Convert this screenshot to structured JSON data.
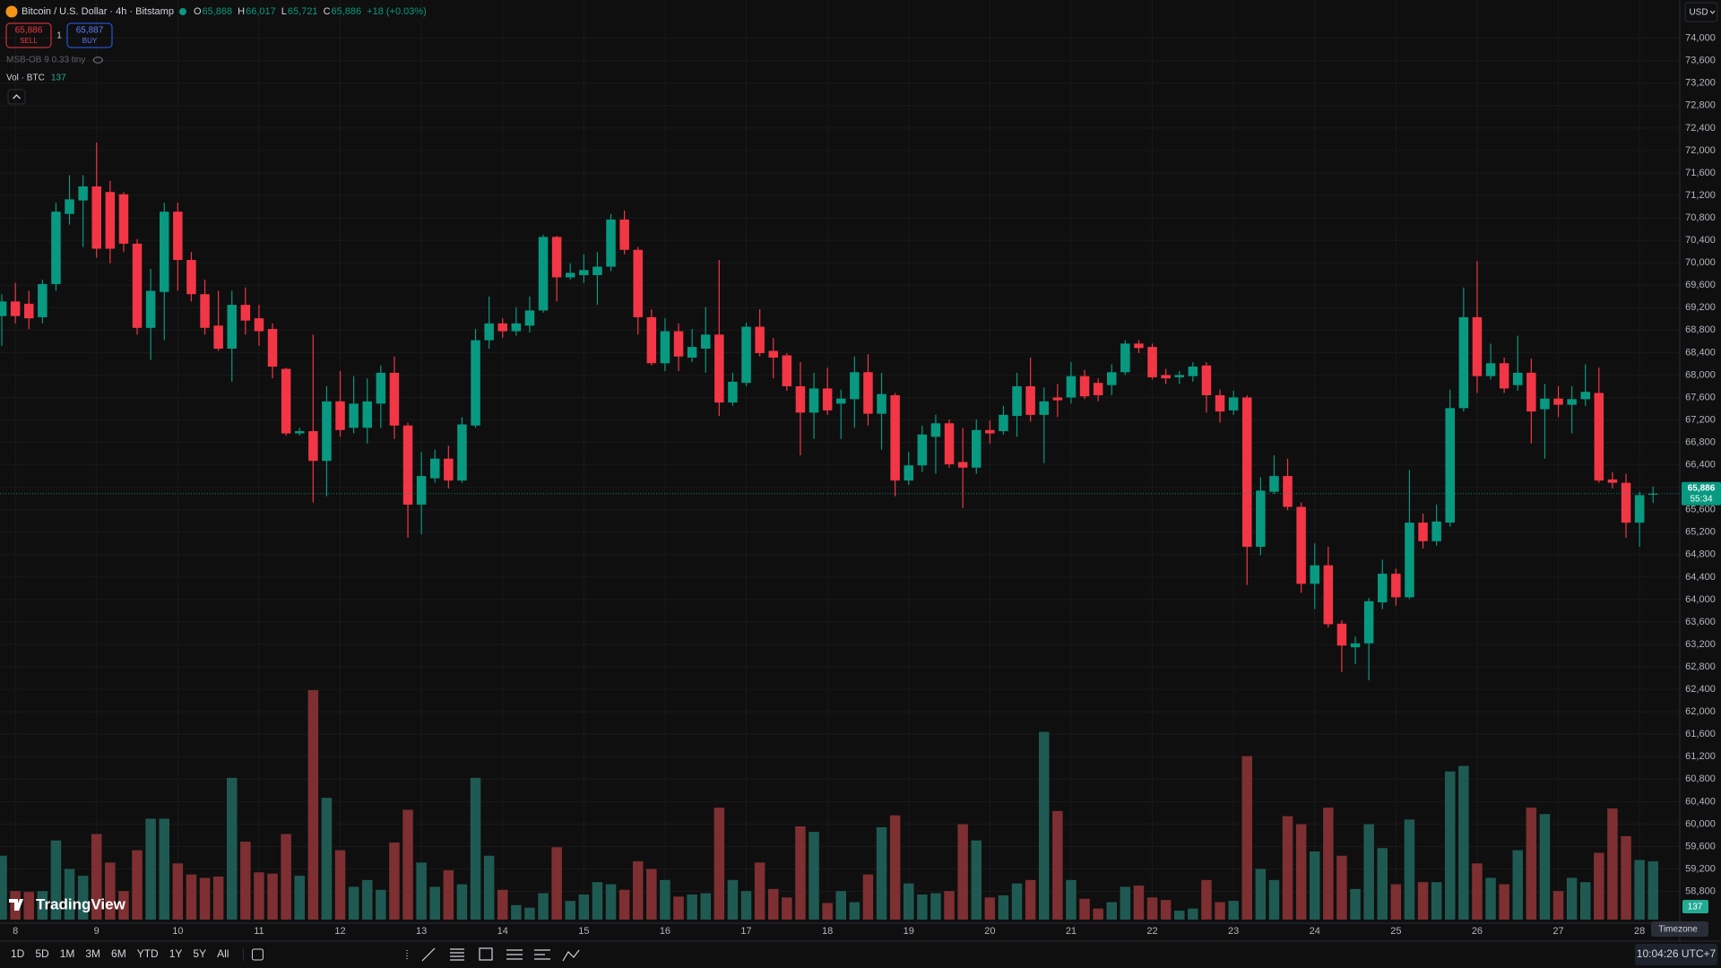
{
  "header": {
    "symbol": "Bitcoin / U.S. Dollar · 4h · Bitstamp",
    "o_label": "O",
    "open": "65,868",
    "h_label": "H",
    "high": "66,017",
    "l_label": "L",
    "low": "65,721",
    "c_label": "C",
    "close": "65,886",
    "change": "+18 (+0.03%)"
  },
  "trade": {
    "sell_price": "65,886",
    "sell": "SELL",
    "quantity": "1",
    "buy_price": "65,887",
    "buy": "BUY"
  },
  "indicator": "MSB-OB 9 0.33 tiny",
  "volume_legend": "Vol · BTC",
  "currency": "USD",
  "price_tag": {
    "price": "65,886",
    "countdown": "55:34"
  },
  "timeframes": [
    "1D",
    "5D",
    "1M",
    "3M",
    "6M",
    "YTD",
    "1Y",
    "5Y",
    "All"
  ],
  "clock": "10:04:26 UTC+7",
  "tooltip": "Timezone",
  "logo": "TradingView",
  "chart_data": {
    "type": "candlestick",
    "categories": [
      null,
      "8",
      null,
      null,
      null,
      null,
      null,
      "9",
      null,
      null,
      null,
      null,
      null,
      "10",
      null,
      null,
      null,
      null,
      null,
      "11",
      null,
      null,
      null,
      null,
      null,
      "12",
      null,
      null,
      null,
      null,
      null,
      "13",
      null,
      null,
      null,
      null,
      null,
      "14",
      null,
      null,
      null,
      null,
      null,
      "15",
      null,
      null,
      null,
      null,
      null,
      "16",
      null,
      null,
      null,
      null,
      null,
      "17",
      null,
      null,
      null,
      null,
      null,
      "18",
      null,
      null,
      null,
      null,
      null,
      "19",
      null,
      null,
      null,
      null,
      null,
      "20",
      null,
      null,
      null,
      null,
      null,
      "21",
      null,
      null,
      null,
      null,
      null,
      "22",
      null,
      null,
      null,
      null,
      null,
      "23",
      null,
      null,
      null,
      null,
      null,
      "24",
      null,
      null,
      null,
      null,
      null,
      "25",
      null,
      null,
      null,
      null,
      null,
      "26",
      null,
      null,
      null,
      null,
      null,
      "27",
      null,
      null,
      null,
      null,
      null,
      "28",
      null
    ],
    "open": [
      69050,
      69310,
      69270,
      69030,
      69620,
      70870,
      71110,
      71360,
      71260,
      71220,
      70340,
      68840,
      69480,
      70910,
      70050,
      69440,
      68880,
      68470,
      69250,
      69010,
      68820,
      68110,
      66960,
      67000,
      66470,
      67530,
      67060,
      67060,
      67490,
      68040,
      67100,
      65690,
      66160,
      66510,
      66120,
      67100,
      68620,
      68920,
      68780,
      68880,
      69150,
      70460,
      69740,
      69780,
      69780,
      69930,
      70770,
      70230,
      69030,
      68210,
      68780,
      68310,
      68470,
      68720,
      67510,
      67860,
      68860,
      68430,
      68350,
      67800,
      67330,
      67760,
      67490,
      67570,
      68050,
      67310,
      67640,
      66120,
      66390,
      66900,
      67140,
      66450,
      66350,
      67020,
      67000,
      67270,
      67800,
      67290,
      67600,
      67600,
      67980,
      67860,
      67820,
      68050,
      68560,
      68500,
      68000,
      67960,
      67980,
      68170,
      67640,
      67370,
      67600,
      64940,
      65920,
      66200,
      65650,
      64280,
      64610,
      63570,
      63150,
      63220,
      63950,
      64460,
      64040,
      65370,
      65040,
      65370,
      67410,
      69030,
      67980,
      68210,
      67820,
      68040,
      67390,
      67580,
      67470,
      67570,
      67680,
      66140,
      66080,
      65370,
      65868
    ],
    "high": [
      69440,
      69640,
      69500,
      69700,
      71070,
      71560,
      71560,
      72140,
      71460,
      71260,
      70420,
      69890,
      71070,
      71070,
      70190,
      69700,
      69500,
      69500,
      69560,
      69250,
      68920,
      68130,
      67060,
      68720,
      67800,
      68070,
      67980,
      67940,
      68170,
      68330,
      67150,
      66630,
      66670,
      66740,
      67250,
      68820,
      69400,
      69010,
      69210,
      69400,
      70500,
      70480,
      69990,
      70150,
      70190,
      70870,
      70930,
      70280,
      69170,
      69010,
      68920,
      68820,
      69210,
      70050,
      68040,
      68930,
      69170,
      68660,
      68390,
      68230,
      68040,
      68130,
      67740,
      68330,
      68370,
      68040,
      67680,
      66630,
      67100,
      67290,
      67210,
      67060,
      67210,
      67190,
      67450,
      68040,
      68310,
      67780,
      67840,
      68230,
      68090,
      67940,
      68190,
      68620,
      68620,
      68560,
      68110,
      68070,
      68230,
      68230,
      67740,
      67720,
      67640,
      66180,
      66570,
      66510,
      65730,
      65000,
      64940,
      63630,
      63340,
      64030,
      64710,
      64550,
      66310,
      65530,
      65690,
      67740,
      69560,
      70030,
      68560,
      68310,
      68700,
      68290,
      67840,
      67800,
      67800,
      68190,
      68130,
      66270,
      66240,
      65920,
      66017
    ],
    "low": [
      68520,
      68920,
      68820,
      68920,
      69500,
      70680,
      70280,
      70090,
      69990,
      70190,
      68720,
      68270,
      68620,
      69500,
      69310,
      68720,
      68430,
      67880,
      68720,
      68520,
      67940,
      66920,
      66920,
      65730,
      65840,
      66900,
      66960,
      66780,
      67060,
      66860,
      65100,
      65160,
      66080,
      65980,
      66080,
      67060,
      68470,
      68660,
      68700,
      68760,
      69110,
      69310,
      69700,
      69640,
      69250,
      69850,
      70150,
      68720,
      68170,
      68070,
      68070,
      68230,
      68040,
      67270,
      67450,
      67800,
      68330,
      67940,
      67720,
      66570,
      66860,
      67290,
      66860,
      67060,
      67100,
      66670,
      65840,
      66040,
      66270,
      66240,
      66350,
      65630,
      66240,
      66780,
      66940,
      66900,
      67170,
      66430,
      67250,
      67490,
      67570,
      67530,
      67640,
      68000,
      68390,
      67920,
      67840,
      67840,
      67880,
      67330,
      67150,
      67290,
      64260,
      64790,
      65880,
      65590,
      64120,
      63830,
      63500,
      62710,
      62850,
      62560,
      63830,
      63890,
      64010,
      64910,
      64960,
      65300,
      67350,
      67680,
      67920,
      67680,
      67720,
      66780,
      66510,
      67250,
      66960,
      67450,
      66080,
      65980,
      65100,
      64940,
      65721
    ],
    "close": [
      69310,
      69050,
      69010,
      69620,
      70910,
      71130,
      71360,
      70250,
      70250,
      70340,
      68840,
      69500,
      70910,
      70050,
      69440,
      68840,
      68470,
      69250,
      68970,
      68780,
      68150,
      66960,
      67000,
      66470,
      67530,
      67020,
      67490,
      67530,
      68040,
      67100,
      65690,
      66200,
      66510,
      66120,
      67120,
      68620,
      68920,
      68780,
      68920,
      69150,
      70460,
      69740,
      69820,
      69870,
      69930,
      70770,
      70230,
      69030,
      68210,
      68780,
      68330,
      68500,
      68720,
      67510,
      67880,
      68860,
      68390,
      68310,
      67800,
      67330,
      67760,
      67370,
      67580,
      68050,
      67310,
      67660,
      66120,
      66390,
      66940,
      67140,
      66410,
      66350,
      67020,
      66960,
      67290,
      67800,
      67290,
      67530,
      67550,
      67980,
      67620,
      67640,
      68050,
      68560,
      68480,
      67960,
      67940,
      68000,
      68150,
      67640,
      67350,
      67600,
      64940,
      65940,
      66200,
      65650,
      64280,
      64610,
      63560,
      63180,
      63220,
      63970,
      64460,
      64040,
      65370,
      65040,
      65390,
      67410,
      69030,
      67980,
      68210,
      67760,
      68040,
      67350,
      67580,
      67470,
      67570,
      67700,
      66120,
      66080,
      65370,
      65860,
      65886
    ],
    "volume": [
      150,
      67,
      65,
      67,
      186,
      119,
      103,
      201,
      134,
      67,
      163,
      237,
      237,
      132,
      106,
      98,
      101,
      333,
      183,
      111,
      108,
      201,
      103,
      539,
      286,
      163,
      77,
      93,
      70,
      181,
      258,
      134,
      77,
      116,
      83,
      333,
      150,
      70,
      34,
      28,
      62,
      170,
      44,
      59,
      88,
      83,
      70,
      137,
      119,
      93,
      54,
      59,
      62,
      263,
      93,
      67,
      134,
      72,
      52,
      219,
      206,
      39,
      67,
      41,
      106,
      217,
      245,
      85,
      59,
      62,
      67,
      224,
      186,
      52,
      57,
      85,
      93,
      441,
      255,
      93,
      49,
      26,
      41,
      77,
      80,
      52,
      46,
      21,
      26,
      93,
      41,
      44,
      384,
      119,
      93,
      243,
      224,
      160,
      263,
      150,
      72,
      224,
      168,
      83,
      235,
      88,
      88,
      348,
      361,
      132,
      98,
      83,
      163,
      263,
      248,
      67,
      98,
      88,
      157,
      261,
      196,
      140,
      137
    ],
    "up_color": "#089981",
    "down_color": "#f23645",
    "volume_up_color": "#1f5a52",
    "volume_down_color": "#7d2f31",
    "ylim": [
      58250,
      74250
    ],
    "yticks": [
      {
        "value": 58800,
        "label": "58,800"
      },
      {
        "value": 59200,
        "label": "59,200"
      },
      {
        "value": 59600,
        "label": "59,600"
      },
      {
        "value": 60000,
        "label": "60,000"
      },
      {
        "value": 60400,
        "label": "60,400"
      },
      {
        "value": 60800,
        "label": "60,800"
      },
      {
        "value": 61200,
        "label": "61,200"
      },
      {
        "value": 61600,
        "label": "61,600"
      },
      {
        "value": 62000,
        "label": "62,000"
      },
      {
        "value": 62400,
        "label": "62,400"
      },
      {
        "value": 62800,
        "label": "62,800"
      },
      {
        "value": 63200,
        "label": "63,200"
      },
      {
        "value": 63600,
        "label": "63,600"
      },
      {
        "value": 64000,
        "label": "64,000"
      },
      {
        "value": 64400,
        "label": "64,400"
      },
      {
        "value": 64800,
        "label": "64,800"
      },
      {
        "value": 65200,
        "label": "65,200"
      },
      {
        "value": 65600,
        "label": "65,600"
      },
      {
        "value": 66000,
        "label": "66,000"
      },
      {
        "value": 66400,
        "label": "66,400"
      },
      {
        "value": 66800,
        "label": "66,800"
      },
      {
        "value": 67200,
        "label": "67,200"
      },
      {
        "value": 67600,
        "label": "67,600"
      },
      {
        "value": 68000,
        "label": "68,000"
      },
      {
        "value": 68400,
        "label": "68,400"
      },
      {
        "value": 68800,
        "label": "68,800"
      },
      {
        "value": 69200,
        "label": "69,200"
      },
      {
        "value": 69600,
        "label": "69,600"
      },
      {
        "value": 70000,
        "label": "70,000"
      },
      {
        "value": 70400,
        "label": "70,400"
      },
      {
        "value": 70800,
        "label": "70,800"
      },
      {
        "value": 71200,
        "label": "71,200"
      },
      {
        "value": 71600,
        "label": "71,600"
      },
      {
        "value": 72000,
        "label": "72,000"
      },
      {
        "value": 72400,
        "label": "72,400"
      },
      {
        "value": 72800,
        "label": "72,800"
      },
      {
        "value": 73200,
        "label": "73,200"
      },
      {
        "value": 73600,
        "label": "73,600"
      },
      {
        "value": 74000,
        "label": "74,000"
      }
    ],
    "grid": true
  }
}
